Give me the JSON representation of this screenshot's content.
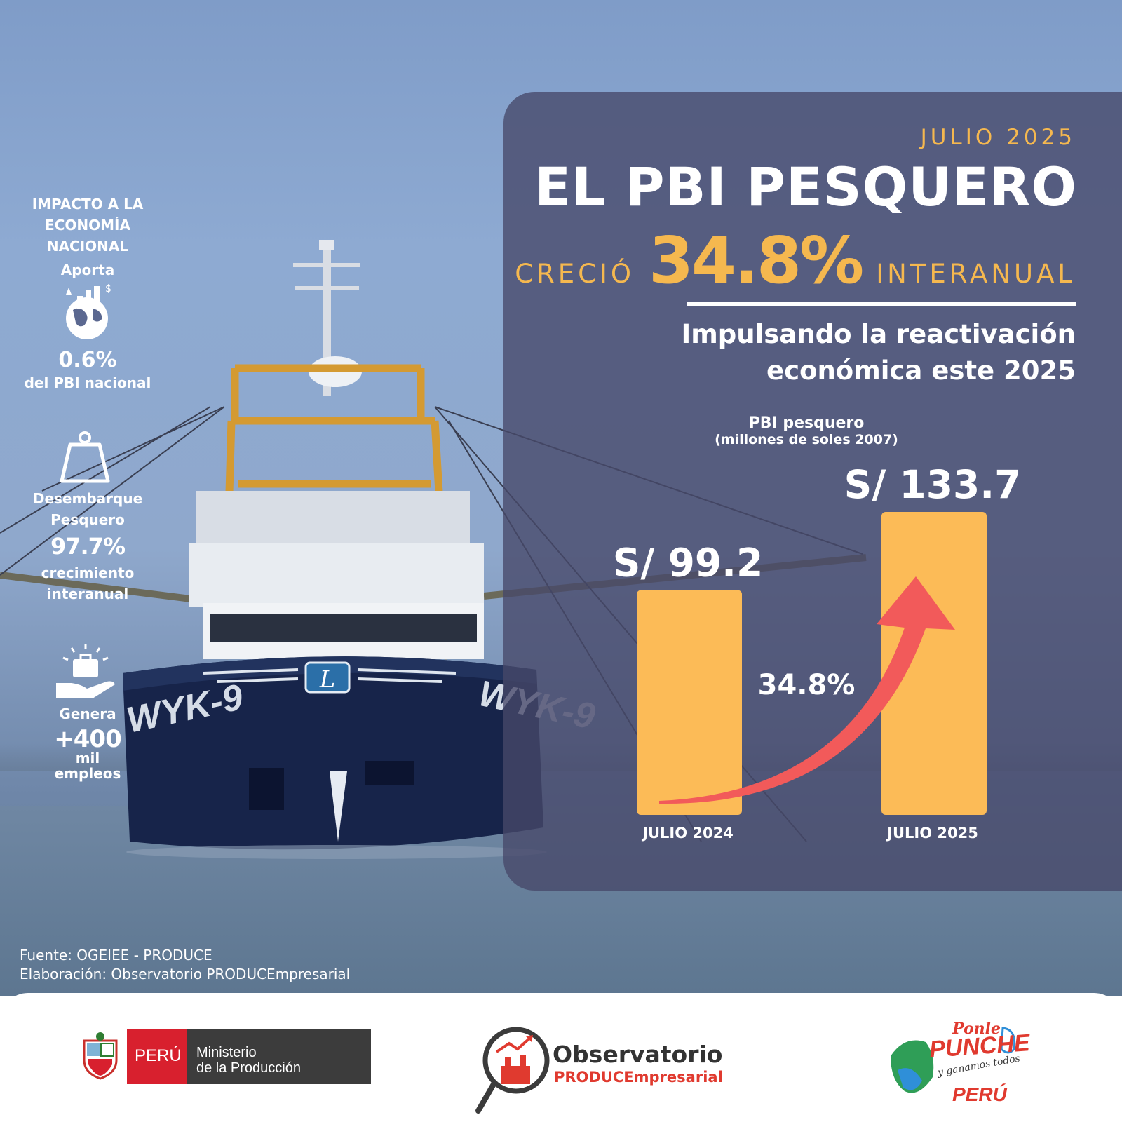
{
  "date_label": "JULIO 2025",
  "title": "EL PBI PESQUERO",
  "growth": {
    "prefix": "CRECIÓ",
    "value": "34.8%",
    "suffix": "INTERANUAL"
  },
  "subtitle": [
    "Impulsando la reactivación",
    "económica este 2025"
  ],
  "left_stats": {
    "heading": [
      "IMPACTO A LA",
      "ECONOMÍA",
      "NACIONAL"
    ],
    "aporta": "Aporta",
    "aporta_value": "0.6%",
    "aporta_desc": "del PBI  nacional",
    "desembarque": [
      "Desembarque",
      "Pesquero"
    ],
    "desembarque_value": "97.7%",
    "desembarque_desc": [
      "crecimiento",
      "interanual"
    ],
    "genera": "Genera",
    "empleos_value": "+400",
    "empleos_desc": [
      "mil",
      "empleos"
    ]
  },
  "source": {
    "fuente": "Fuente: OGEIEE - PRODUCE",
    "elaboracion": "Elaboración: Observatorio PRODUCEmpresarial"
  },
  "ship_marking": "WYK-9",
  "ship_logo_letter": "L",
  "footer": {
    "peru": "PERÚ",
    "ministerio": [
      "Ministerio",
      "de la Producción"
    ],
    "observatorio": "Observatorio",
    "observatorio_sub": "PRODUCEmpresarial",
    "ponle": "Ponle",
    "punche": "PUNCHE",
    "ganamos": "y ganamos todos",
    "peru_slogan": "PERÚ"
  },
  "colors": {
    "accent": "#f5b84f",
    "bar": "#fcbb57",
    "arrow": "#f25a5a",
    "panel": "#464869",
    "peru_red": "#d8202e"
  },
  "chart_data": {
    "type": "bar",
    "title": "PBI pesquero",
    "subtitle": "(millones de soles 2007)",
    "categories": [
      "JULIO 2024",
      "JULIO 2025"
    ],
    "values": [
      99.2,
      133.7
    ],
    "value_labels": [
      "S/ 99.2",
      "S/ 133.7"
    ],
    "annotation": "34.8%",
    "ylim": [
      0,
      140
    ]
  }
}
